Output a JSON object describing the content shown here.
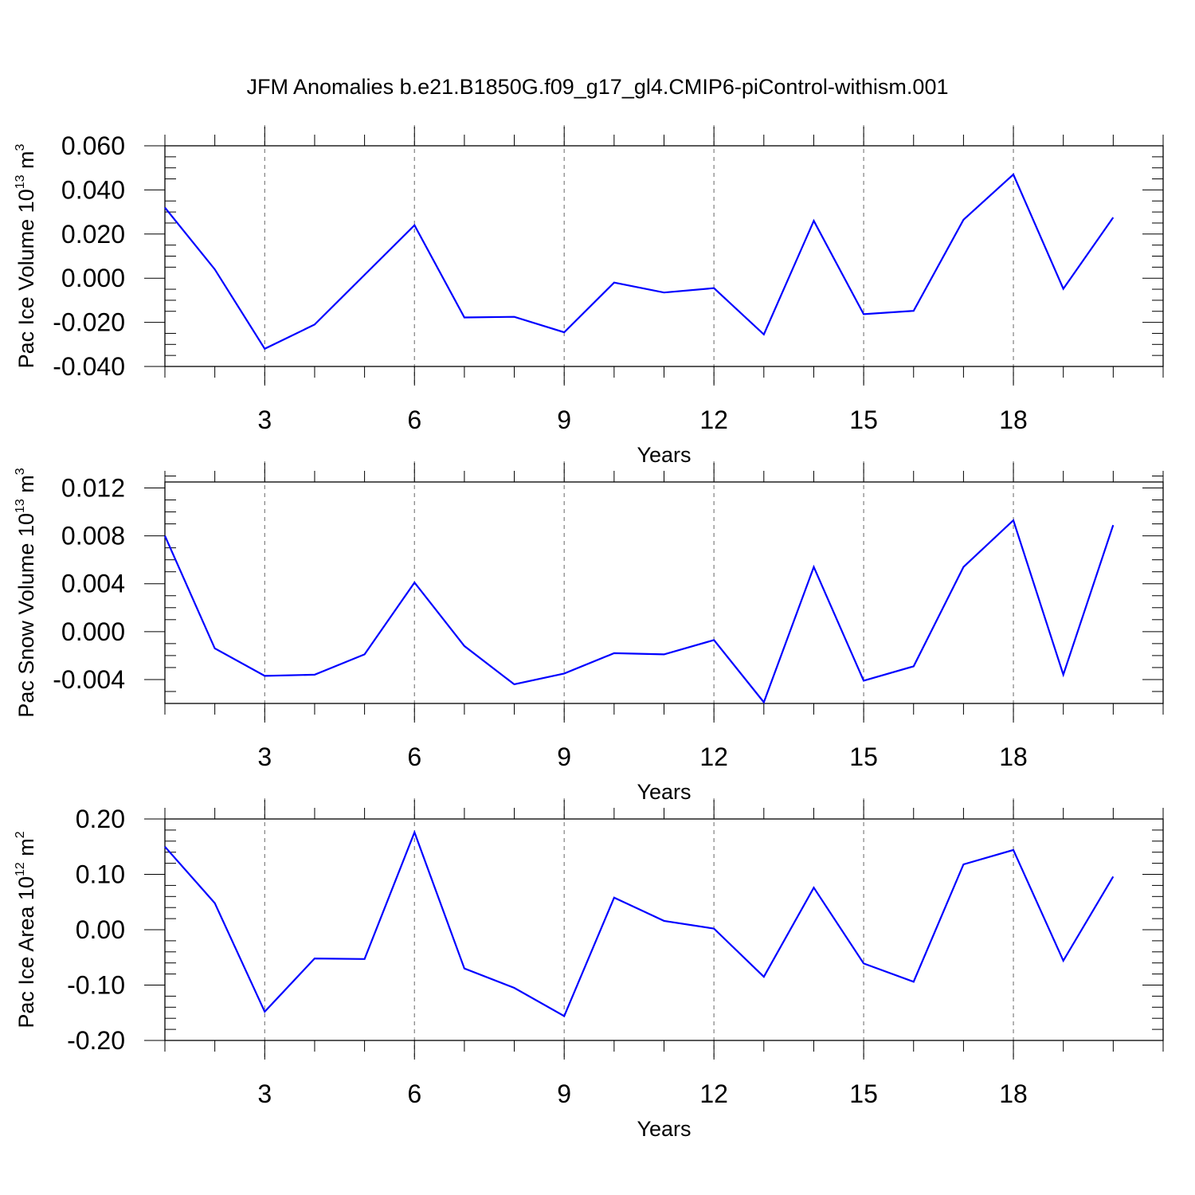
{
  "figure": {
    "title": "JFM Anomalies b.e21.B1850G.f09_g17_gl4.CMIP6-piControl-withism.001",
    "line_color": "#0000ff",
    "grid_color": "#808080"
  },
  "chart_data": [
    {
      "type": "line",
      "xlabel": "Years",
      "ylabel": {
        "text": "Pac Ice Volume 10",
        "exp": "13",
        "unit": " m",
        "unit_exp": "3"
      },
      "xlim": [
        1,
        21
      ],
      "ylim": [
        -0.04,
        0.06
      ],
      "x_ticks": [
        3,
        6,
        9,
        12,
        15,
        18
      ],
      "x_tick_labels": [
        "3",
        "6",
        "9",
        "12",
        "15",
        "18"
      ],
      "x_minor_step": 1,
      "y_ticks": [
        -0.04,
        -0.02,
        0.0,
        0.02,
        0.04,
        0.06
      ],
      "y_tick_labels": [
        "-0.040",
        "-0.020",
        "0.000",
        "0.020",
        "0.040",
        "0.060"
      ],
      "y_minor_step": 0.005,
      "vertical_grid": "dashed at major x ticks",
      "x": [
        1,
        2,
        3,
        4,
        5,
        6,
        7,
        8,
        9,
        10,
        11,
        12,
        13,
        14,
        15,
        16,
        17,
        18,
        19,
        20,
        21
      ],
      "series": [
        {
          "values": [
            0.032,
            0.004,
            -0.032,
            -0.021,
            0.0015,
            0.024,
            -0.0178,
            -0.0175,
            -0.0245,
            -0.002,
            -0.0065,
            -0.0045,
            -0.0255,
            0.026,
            -0.0163,
            -0.0148,
            0.0265,
            0.047,
            -0.0048,
            0.0275,
            null
          ]
        }
      ]
    },
    {
      "type": "line",
      "xlabel": "Years",
      "ylabel": {
        "text": "Pac Snow Volume 10",
        "exp": "13",
        "unit": " m",
        "unit_exp": "3"
      },
      "xlim": [
        1,
        21
      ],
      "ylim": [
        -0.006,
        0.0125
      ],
      "x_ticks": [
        3,
        6,
        9,
        12,
        15,
        18
      ],
      "x_tick_labels": [
        "3",
        "6",
        "9",
        "12",
        "15",
        "18"
      ],
      "x_minor_step": 1,
      "y_ticks": [
        -0.004,
        0.0,
        0.004,
        0.008,
        0.012
      ],
      "y_tick_labels": [
        "-0.004",
        "0.000",
        "0.004",
        "0.008",
        "0.012"
      ],
      "y_minor_step": 0.001,
      "vertical_grid": "dashed at major x ticks",
      "x": [
        1,
        2,
        3,
        4,
        5,
        6,
        7,
        8,
        9,
        10,
        11,
        12,
        13,
        14,
        15,
        16,
        17,
        18,
        19,
        20,
        21
      ],
      "series": [
        {
          "values": [
            0.008,
            -0.0014,
            -0.0037,
            -0.0036,
            -0.0019,
            0.0041,
            -0.0012,
            -0.0044,
            -0.0035,
            -0.0018,
            -0.0019,
            -0.0007,
            -0.0059,
            0.0054,
            -0.0041,
            -0.0029,
            0.0054,
            0.0093,
            -0.0036,
            0.0089,
            null
          ]
        }
      ]
    },
    {
      "type": "line",
      "xlabel": "Years",
      "ylabel": {
        "text": "Pac Ice Area 10",
        "exp": "12",
        "unit": " m",
        "unit_exp": "2"
      },
      "xlim": [
        1,
        21
      ],
      "ylim": [
        -0.2,
        0.2
      ],
      "x_ticks": [
        3,
        6,
        9,
        12,
        15,
        18
      ],
      "x_tick_labels": [
        "3",
        "6",
        "9",
        "12",
        "15",
        "18"
      ],
      "x_minor_step": 1,
      "y_ticks": [
        -0.2,
        -0.1,
        0.0,
        0.1,
        0.2
      ],
      "y_tick_labels": [
        "-0.20",
        "-0.10",
        "0.00",
        "0.10",
        "0.20"
      ],
      "y_minor_step": 0.02,
      "vertical_grid": "dashed at major x ticks",
      "x": [
        1,
        2,
        3,
        4,
        5,
        6,
        7,
        8,
        9,
        10,
        11,
        12,
        13,
        14,
        15,
        16,
        17,
        18,
        19,
        20,
        21
      ],
      "series": [
        {
          "values": [
            0.15,
            0.048,
            -0.148,
            -0.052,
            -0.053,
            0.176,
            -0.07,
            -0.105,
            -0.156,
            0.058,
            0.016,
            0.002,
            -0.085,
            0.076,
            -0.061,
            -0.094,
            0.118,
            0.144,
            -0.056,
            0.096,
            null
          ]
        }
      ]
    }
  ]
}
